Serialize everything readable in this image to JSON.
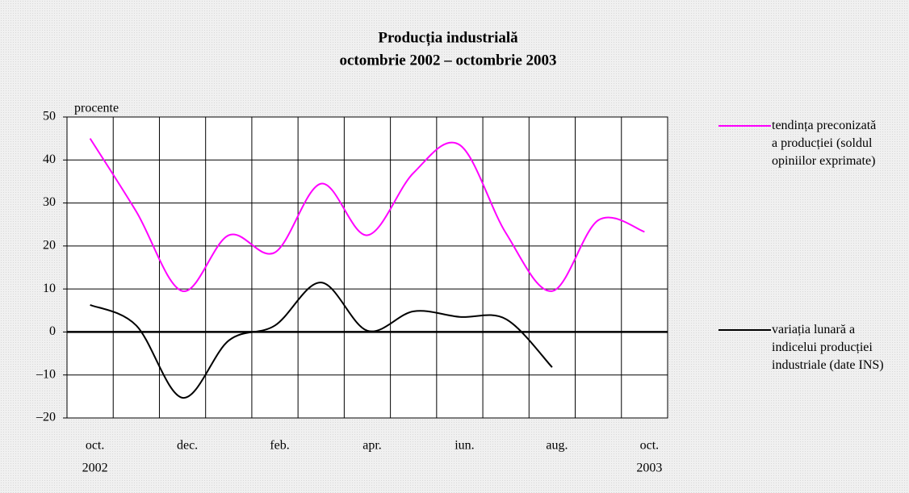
{
  "chart_data": {
    "type": "line",
    "title": "Producția industrială",
    "subtitle": "octombrie 2002 – octombrie 2003",
    "ylabel": "procente",
    "categories": [
      "oct.",
      null,
      "dec.",
      null,
      "feb.",
      null,
      "apr.",
      null,
      "iun.",
      null,
      "aug.",
      null,
      "oct."
    ],
    "category_years": [
      "2002",
      null,
      null,
      null,
      null,
      null,
      null,
      null,
      null,
      null,
      null,
      null,
      "2003"
    ],
    "series": [
      {
        "name": "tendința preconizată a producției (soldul opiniilor exprimate)",
        "color": "#ff00ff",
        "values": [
          45,
          28,
          9.5,
          22.5,
          18.5,
          34.5,
          22.5,
          37,
          43.5,
          23,
          9.5,
          26,
          23.3
        ]
      },
      {
        "name": "variația lunară a indicelui producției industriale (date INS)",
        "color": "#000000",
        "values": [
          6.3,
          1.5,
          -15.3,
          -2,
          1.5,
          11.5,
          0.3,
          4.8,
          3.5,
          3,
          -8.2,
          null,
          null
        ]
      }
    ],
    "ylim": [
      -20,
      50
    ],
    "yticks": [
      {
        "value": -20,
        "label": "–20"
      },
      {
        "value": -10,
        "label": "–10"
      },
      0,
      10,
      20,
      30,
      40,
      50
    ],
    "grid": true
  }
}
